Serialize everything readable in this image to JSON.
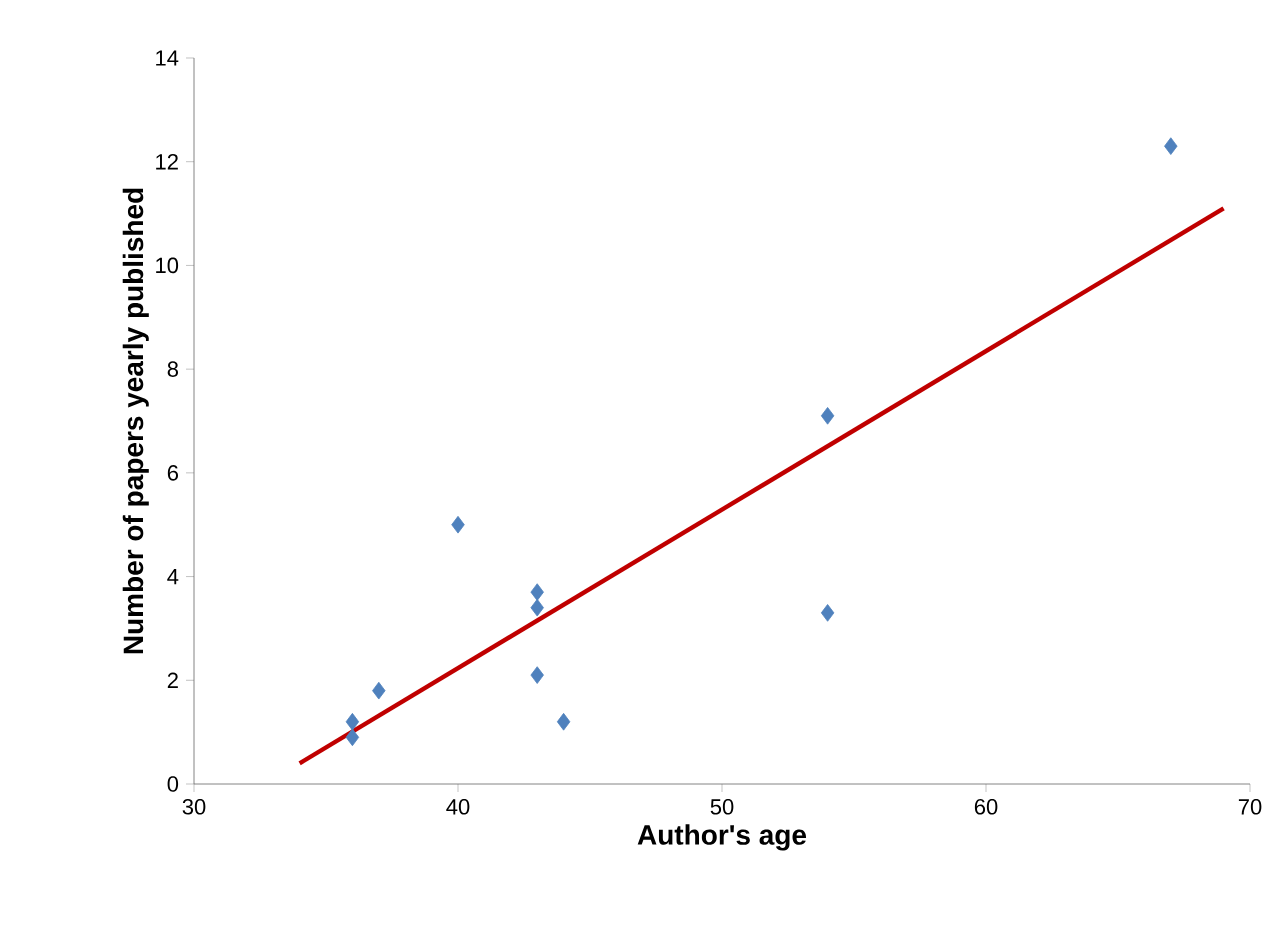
{
  "chart_data": {
    "type": "scatter",
    "xlabel": "Author's age",
    "ylabel": "Number of papers yearly published",
    "xlim": [
      30,
      70
    ],
    "ylim": [
      0,
      14
    ],
    "xticks": [
      30,
      40,
      50,
      60,
      70
    ],
    "yticks": [
      0,
      2,
      4,
      6,
      8,
      10,
      12,
      14
    ],
    "grid": false,
    "series": [
      {
        "color": "#4f81bd",
        "marker": "diamond",
        "x": [
          36,
          36,
          37,
          40,
          43,
          43,
          43,
          44,
          54,
          54,
          67
        ],
        "values": [
          1.2,
          0.9,
          1.8,
          5.0,
          3.7,
          3.4,
          2.1,
          1.2,
          7.1,
          3.3,
          12.3
        ]
      },
      {
        "type": "line",
        "color": "#c00000",
        "marker": "none",
        "x": [
          34,
          69
        ],
        "values": [
          0.4,
          11.1
        ]
      }
    ]
  }
}
